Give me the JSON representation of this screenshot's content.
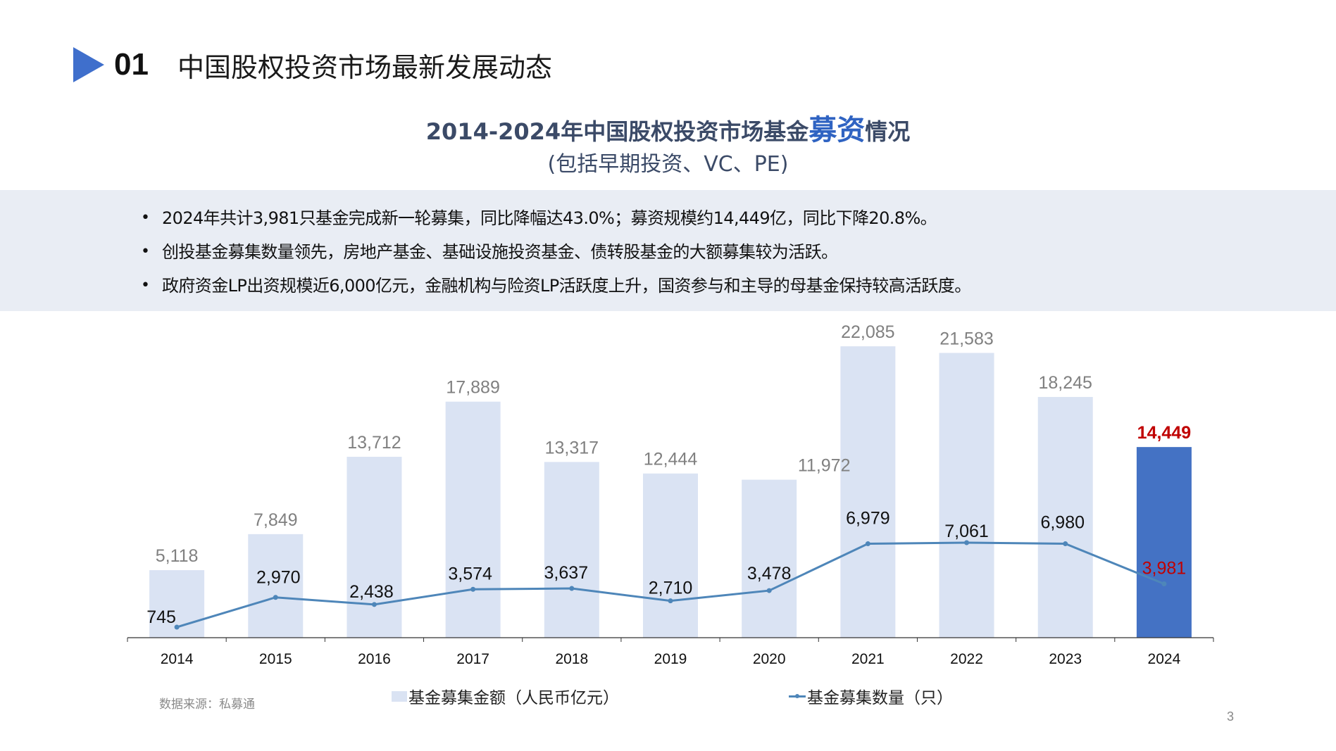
{
  "header": {
    "section_number": "01",
    "section_title": "中国股权投资市场最新发展动态",
    "accent_color": "#3F6FCC"
  },
  "chart_title": {
    "prefix": "2014-2024年中国股权投资市场基金",
    "highlight": "募资",
    "suffix": "情况",
    "subtitle": "(包括早期投资、VC、PE)"
  },
  "summary": {
    "bullets": [
      "2024年共计3,981只基金完成新一轮募集，同比降幅达43.0%；募资规模约14,449亿，同比下降20.8%。",
      "创投基金募集数量领先，房地产基金、基础设施投资基金、债转股基金的大额募集较为活跃。",
      "政府资金LP出资规模近6,000亿元，金融机构与险资LP活跃度上升，国资参与和主导的母基金保持较高活跃度。"
    ]
  },
  "chart_data": {
    "type": "bar",
    "categories": [
      "2014",
      "2015",
      "2016",
      "2017",
      "2018",
      "2019",
      "2020",
      "2021",
      "2022",
      "2023",
      "2024"
    ],
    "series": [
      {
        "name": "基金募集金额（人民币亿元）",
        "type": "bar",
        "values": [
          5118,
          7849,
          13712,
          17889,
          13317,
          12444,
          11972,
          22085,
          21583,
          18245,
          14449
        ],
        "labels": [
          "5,118",
          "7,849",
          "13,712",
          "17,889",
          "13,317",
          "12,444",
          "11,972",
          "22,085",
          "21,583",
          "18,245",
          "14,449"
        ],
        "color": "#DAE3F3",
        "highlight_color": "#4472C4",
        "highlight_label_color": "#C00000"
      },
      {
        "name": "基金募集数量（只）",
        "type": "line",
        "values": [
          745,
          2970,
          2438,
          3574,
          3637,
          2710,
          3478,
          6979,
          7061,
          6980,
          3981
        ],
        "labels": [
          "745",
          "2,970",
          "2,438",
          "3,574",
          "3,637",
          "2,710",
          "3,478",
          "6,979",
          "7,061",
          "6,980",
          "3,981"
        ],
        "color": "#4E86B9",
        "highlight_label_color": "#C00000"
      }
    ],
    "highlight_index": 10,
    "bar_axis_max": 22085,
    "line_axis_max": 7061,
    "legend_position": "bottom",
    "grid": false,
    "label_color": "#808080"
  },
  "legend": {
    "bar_label": "基金募集金额（人民币亿元）",
    "line_label": "基金募集数量（只）"
  },
  "footer": {
    "source": "数据来源：私募通",
    "page_number": "3"
  }
}
